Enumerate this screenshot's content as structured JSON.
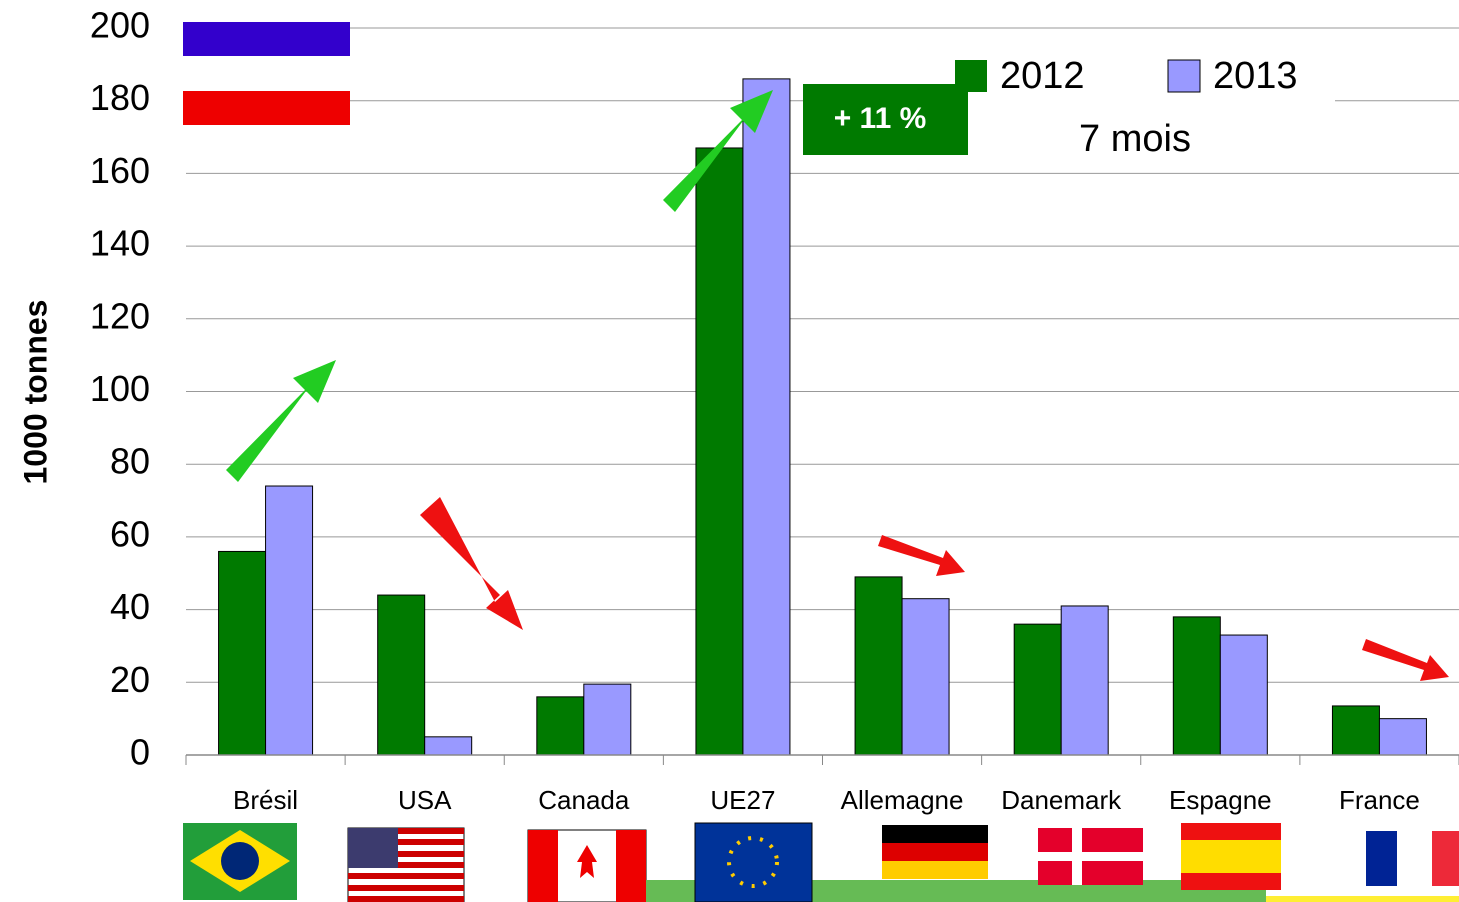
{
  "chart_data": {
    "type": "bar",
    "y_label": "1000 tonnes",
    "categories": [
      "Brésil",
      "USA",
      "Canada",
      "UE27",
      "Allemagne",
      "Danemark",
      "Espagne",
      "France"
    ],
    "series": [
      {
        "name": "2012",
        "color": "#007a00",
        "values": [
          56,
          44,
          16,
          167,
          49,
          36,
          38,
          13.5
        ]
      },
      {
        "name": "2013",
        "color": "#9999ff",
        "values": [
          74,
          5,
          19.5,
          186,
          43,
          41,
          33,
          10
        ]
      }
    ],
    "ylim": [
      0,
      200
    ],
    "yticks": [
      0,
      20,
      40,
      60,
      80,
      100,
      120,
      140,
      160,
      180,
      200
    ],
    "grid": true,
    "annotations": [
      "+ 11 %",
      "7 mois"
    ]
  }
}
